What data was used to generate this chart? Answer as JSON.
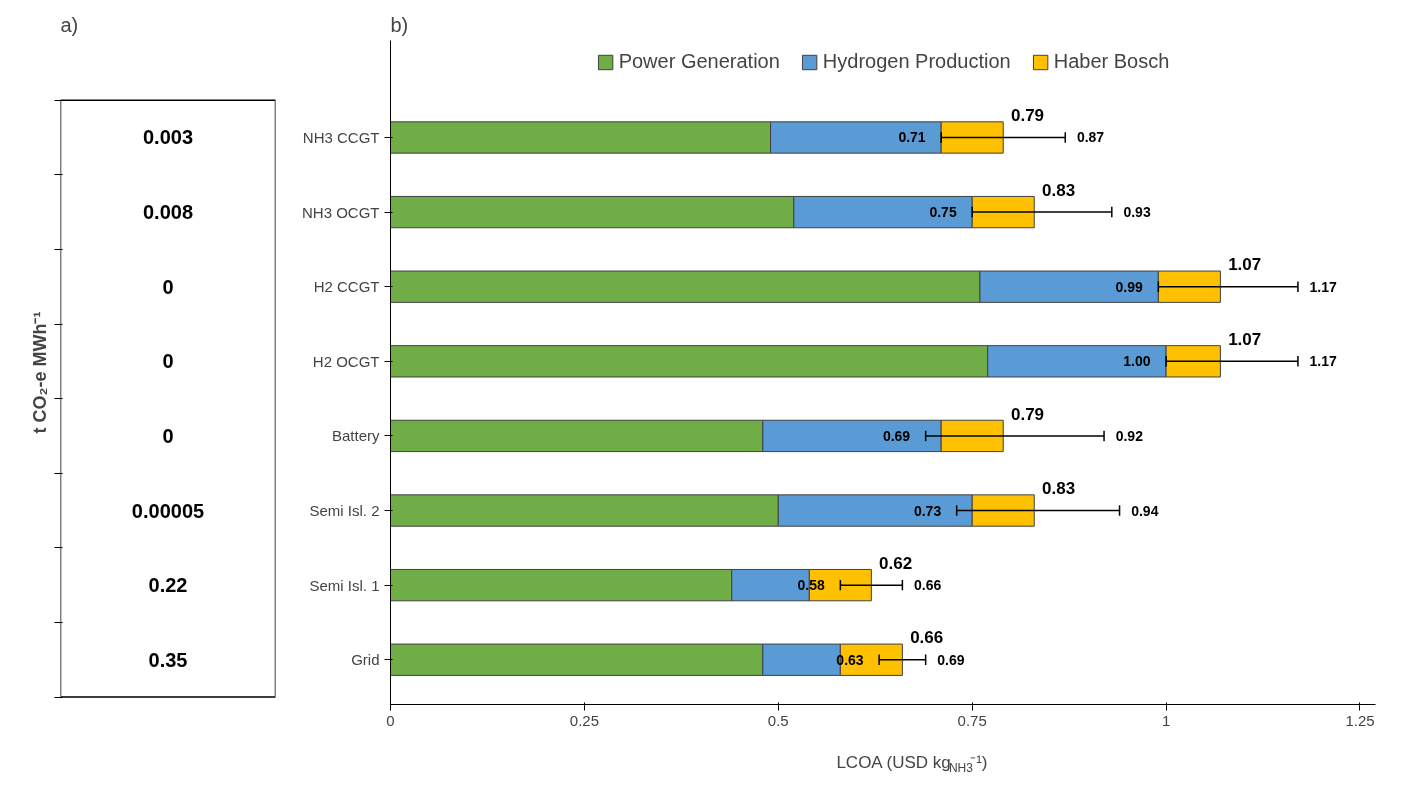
{
  "chart_data": [
    {
      "type": "other",
      "title": "a)",
      "ylabel": "t CO₂-e MWh⁻¹",
      "annotations": [
        "0.003",
        "0.008",
        "0",
        "0",
        "0",
        "0.00005",
        "0.22",
        "0.35"
      ]
    },
    {
      "type": "bar",
      "title": "b)",
      "orientation": "horizontal",
      "stacked": true,
      "xlabel": "LCOA (USD kg$_{NH3}$⁻¹)",
      "categories": [
        "NH3 CCGT",
        "NH3 OCGT",
        "H2 CCGT",
        "H2 OCGT",
        "Battery",
        "Semi Isl. 2",
        "Semi Isl. 1",
        "Grid"
      ],
      "series": [
        {
          "name": "Power Generation",
          "color": "#70ad47",
          "values": [
            0.49,
            0.52,
            0.76,
            0.77,
            0.48,
            0.5,
            0.44,
            0.48
          ]
        },
        {
          "name": "Hydrogen Production",
          "color": "#5b9bd5",
          "values": [
            0.22,
            0.23,
            0.23,
            0.23,
            0.23,
            0.25,
            0.1,
            0.1
          ]
        },
        {
          "name": "Haber Bosch",
          "color": "#ffc000",
          "values": [
            0.08,
            0.08,
            0.08,
            0.07,
            0.08,
            0.08,
            0.08,
            0.08
          ],
          "errors": [
            [
              0.71,
              0.87
            ],
            [
              0.75,
              0.93
            ],
            [
              0.99,
              1.17
            ],
            [
              1.0,
              1.17
            ],
            [
              0.69,
              0.92
            ],
            [
              0.73,
              0.94
            ],
            [
              0.58,
              0.66
            ],
            [
              0.63,
              0.69
            ]
          ]
        }
      ],
      "totals": [
        "0.79",
        "0.83",
        "1.07",
        "1.07",
        "0.79",
        "0.83",
        "0.62",
        "0.66"
      ],
      "annotations": [
        {
          "text": "0.71",
          "x": 0.71,
          "y": "NH3 CCGT"
        },
        {
          "text": "0.87",
          "x": 0.87,
          "y": "NH3 CCGT"
        },
        {
          "text": "0.75",
          "x": 0.75,
          "y": "NH3 OCGT"
        },
        {
          "text": "0.93",
          "x": 0.93,
          "y": "NH3 OCGT"
        },
        {
          "text": "0.99",
          "x": 0.99,
          "y": "H2 CCGT"
        },
        {
          "text": "1.17",
          "x": 1.17,
          "y": "H2 CCGT"
        },
        {
          "text": "1.00",
          "x": 1.0,
          "y": "H2 OCGT"
        },
        {
          "text": "1.17",
          "x": 1.17,
          "y": "H2 OCGT"
        },
        {
          "text": "0.69",
          "x": 0.69,
          "y": "Battery"
        },
        {
          "text": "0.92",
          "x": 0.92,
          "y": "Battery"
        },
        {
          "text": "0.73",
          "x": 0.73,
          "y": "Semi Isl. 2"
        },
        {
          "text": "0.94",
          "x": 0.94,
          "y": "Semi Isl. 2"
        },
        {
          "text": "0.58",
          "x": 0.58,
          "y": "Semi Isl. 1"
        },
        {
          "text": "0.66",
          "x": 0.66,
          "y": "Semi Isl. 1"
        },
        {
          "text": "0.63",
          "x": 0.63,
          "y": "Grid"
        },
        {
          "text": "0.69",
          "x": 0.69,
          "y": "Grid"
        }
      ],
      "xlim": [
        0,
        1.27
      ],
      "xticks": [
        0,
        0.25,
        0.5,
        {
          "value": 0.75,
          "label": "0.75"
        },
        1,
        1.25
      ],
      "legend": "top",
      "grid": false
    }
  ]
}
